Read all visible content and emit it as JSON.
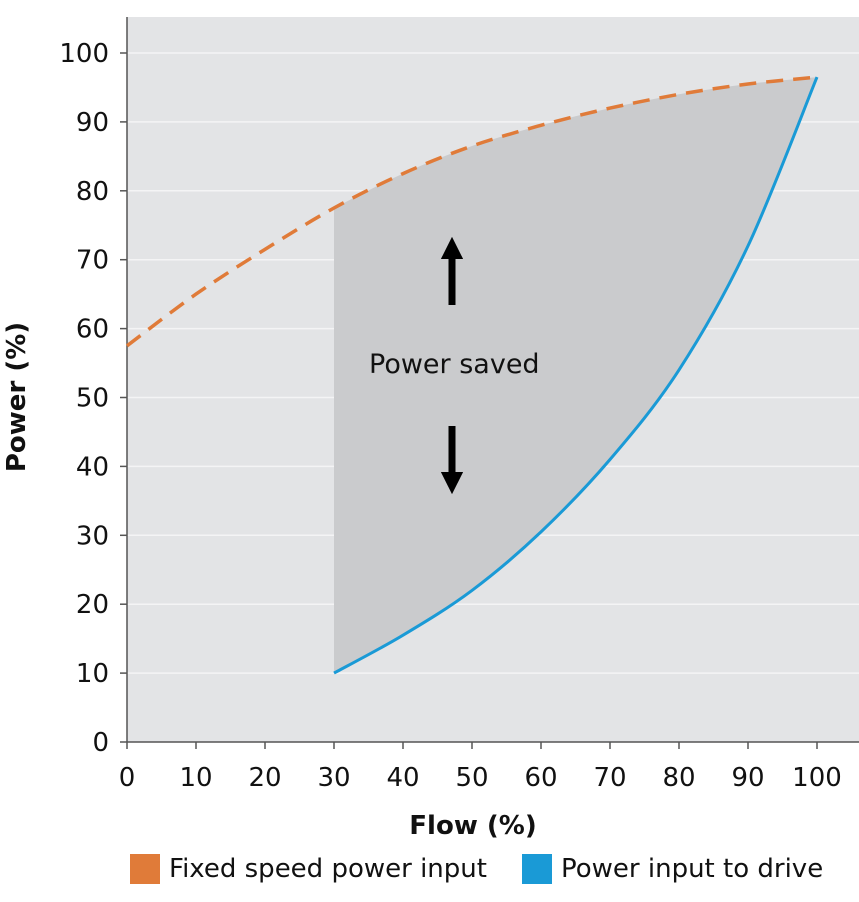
{
  "chart_data": {
    "type": "line",
    "xlabel": "Flow (%)",
    "ylabel": "Power (%)",
    "xlim": [
      0,
      100
    ],
    "ylim": [
      0,
      100
    ],
    "x_ticks": [
      0,
      10,
      20,
      30,
      40,
      50,
      60,
      70,
      80,
      90,
      100
    ],
    "y_ticks": [
      0,
      10,
      20,
      30,
      40,
      50,
      60,
      70,
      80,
      90,
      100
    ],
    "grid": true,
    "legend_position": "bottom",
    "series": [
      {
        "name": "Fixed speed power input",
        "color": "#e07b39",
        "style": "dashed",
        "x": [
          0,
          10,
          20,
          30,
          40,
          50,
          60,
          70,
          80,
          90,
          100
        ],
        "y": [
          57.5,
          65,
          71.5,
          77.5,
          82.5,
          86.5,
          89.5,
          92,
          94,
          95.5,
          96.5
        ]
      },
      {
        "name": "Power input to drive",
        "color": "#1a9ad6",
        "style": "solid",
        "x": [
          30,
          40,
          50,
          60,
          70,
          80,
          90,
          100
        ],
        "y": [
          10,
          15.5,
          22,
          30.5,
          41,
          54,
          72,
          96.5
        ]
      }
    ],
    "annotations": [
      {
        "text": "Power saved",
        "x": 47,
        "y": 55
      }
    ],
    "shaded_region": {
      "between_series": [
        0,
        1
      ],
      "x_from": 30,
      "x_to": 100,
      "color": "#cacbcd"
    }
  }
}
